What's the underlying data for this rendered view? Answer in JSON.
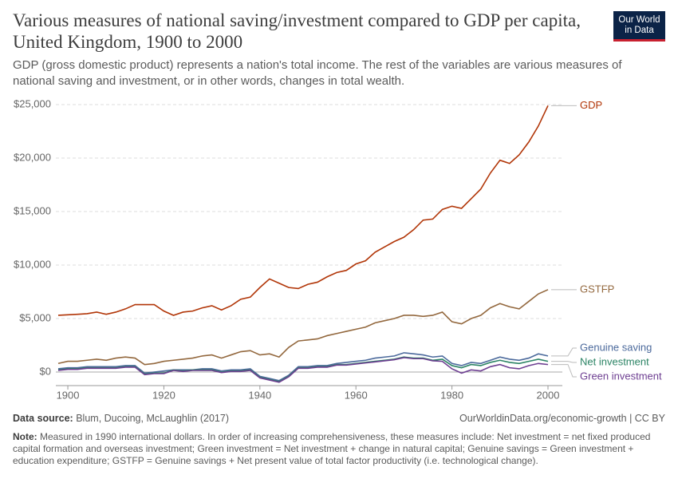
{
  "chart_data": {
    "type": "line",
    "title": "Various measures of national saving/investment compared to GDP per capita, United Kingdom, 1900 to 2000",
    "subtitle": "GDP (gross domestic product) represents a nation's total income. The rest of the variables are various measures of national saving and investment, or in other words, changes in total wealth.",
    "logo": [
      "Our World",
      "in Data"
    ],
    "source_label": "Data source:",
    "source": "Blum, Ducoing, McLaughlin (2017)",
    "url": "OurWorldinData.org/economic-growth | CC BY",
    "note_label": "Note:",
    "note": "Measured in 1990 international dollars. In order of increasing comprehensiveness, these measures include: Net investment = net fixed produced capital formation and overseas investment; Green investment = Net investment + change in natural capital; Genuine savings = Green investment + education expenditure; GSTFP = Genuine savings + Net present value of total factor productivity (i.e. technological change).",
    "x": [
      1898,
      1900,
      1902,
      1904,
      1906,
      1908,
      1910,
      1912,
      1914,
      1916,
      1918,
      1920,
      1922,
      1924,
      1926,
      1928,
      1930,
      1932,
      1934,
      1936,
      1938,
      1940,
      1942,
      1944,
      1946,
      1948,
      1950,
      1952,
      1954,
      1956,
      1958,
      1960,
      1962,
      1964,
      1966,
      1968,
      1970,
      1972,
      1974,
      1976,
      1978,
      1980,
      1982,
      1984,
      1986,
      1988,
      1990,
      1992,
      1994,
      1996,
      1998,
      2000
    ],
    "xlim": [
      1898,
      2000
    ],
    "xticks": [
      1900,
      1920,
      1940,
      1960,
      1980,
      2000
    ],
    "ylim": [
      0,
      25000
    ],
    "yticks": [
      {
        "value": 0,
        "label": "$0"
      },
      {
        "value": 5000,
        "label": "$5,000"
      },
      {
        "value": 10000,
        "label": "$10,000"
      },
      {
        "value": 15000,
        "label": "$15,000"
      },
      {
        "value": 20000,
        "label": "$20,000"
      },
      {
        "value": 25000,
        "label": "$25,000"
      }
    ],
    "grid": true,
    "series": [
      {
        "name": "GDP",
        "color": "#b13507",
        "values": [
          5300,
          5350,
          5400,
          5450,
          5600,
          5400,
          5600,
          5900,
          6300,
          6300,
          6300,
          5700,
          5300,
          5600,
          5700,
          6000,
          6200,
          5800,
          6200,
          6800,
          7000,
          7900,
          8700,
          8300,
          7900,
          7800,
          8200,
          8400,
          8900,
          9300,
          9500,
          10100,
          10400,
          11200,
          11700,
          12200,
          12600,
          13300,
          14200,
          14300,
          15200,
          15500,
          15300,
          16200,
          17100,
          18600,
          19800,
          19500,
          20300,
          21500,
          23000,
          24900
        ]
      },
      {
        "name": "GSTFP",
        "color": "#93683e",
        "values": [
          800,
          1000,
          1000,
          1100,
          1200,
          1100,
          1300,
          1400,
          1300,
          700,
          800,
          1000,
          1100,
          1200,
          1300,
          1500,
          1600,
          1300,
          1600,
          1900,
          2000,
          1600,
          1700,
          1400,
          2300,
          2900,
          3000,
          3100,
          3400,
          3600,
          3800,
          4000,
          4200,
          4600,
          4800,
          5000,
          5300,
          5300,
          5200,
          5300,
          5600,
          4700,
          4500,
          5000,
          5300,
          6000,
          6400,
          6100,
          5900,
          6600,
          7300,
          7700
        ]
      },
      {
        "name": "Genuine saving",
        "color": "#4c6a9c",
        "values": [
          300,
          400,
          400,
          500,
          500,
          500,
          500,
          600,
          600,
          -100,
          0,
          100,
          200,
          200,
          200,
          300,
          300,
          100,
          200,
          200,
          300,
          -400,
          -600,
          -800,
          -300,
          500,
          500,
          600,
          600,
          800,
          900,
          1000,
          1100,
          1300,
          1400,
          1500,
          1800,
          1700,
          1600,
          1400,
          1500,
          800,
          600,
          900,
          800,
          1100,
          1400,
          1200,
          1100,
          1300,
          1700,
          1500
        ]
      },
      {
        "name": "Net investment",
        "color": "#2c8465",
        "values": [
          200,
          300,
          300,
          400,
          400,
          400,
          400,
          500,
          500,
          -200,
          -100,
          -100,
          200,
          100,
          200,
          200,
          200,
          0,
          100,
          100,
          200,
          -500,
          -700,
          -900,
          -400,
          400,
          400,
          500,
          500,
          700,
          700,
          800,
          900,
          1000,
          1100,
          1200,
          1400,
          1300,
          1300,
          1100,
          1200,
          600,
          400,
          700,
          600,
          900,
          1100,
          900,
          800,
          1000,
          1200,
          1000
        ]
      },
      {
        "name": "Green investment",
        "color": "#6d3e91",
        "values": [
          150,
          250,
          250,
          350,
          350,
          350,
          350,
          450,
          450,
          -250,
          -150,
          -150,
          150,
          50,
          150,
          150,
          150,
          -50,
          50,
          50,
          150,
          -550,
          -750,
          -950,
          -450,
          350,
          350,
          450,
          450,
          650,
          650,
          750,
          850,
          950,
          1050,
          1150,
          1350,
          1250,
          1250,
          1050,
          1000,
          300,
          -100,
          200,
          100,
          500,
          700,
          400,
          300,
          600,
          800,
          700
        ]
      }
    ]
  }
}
